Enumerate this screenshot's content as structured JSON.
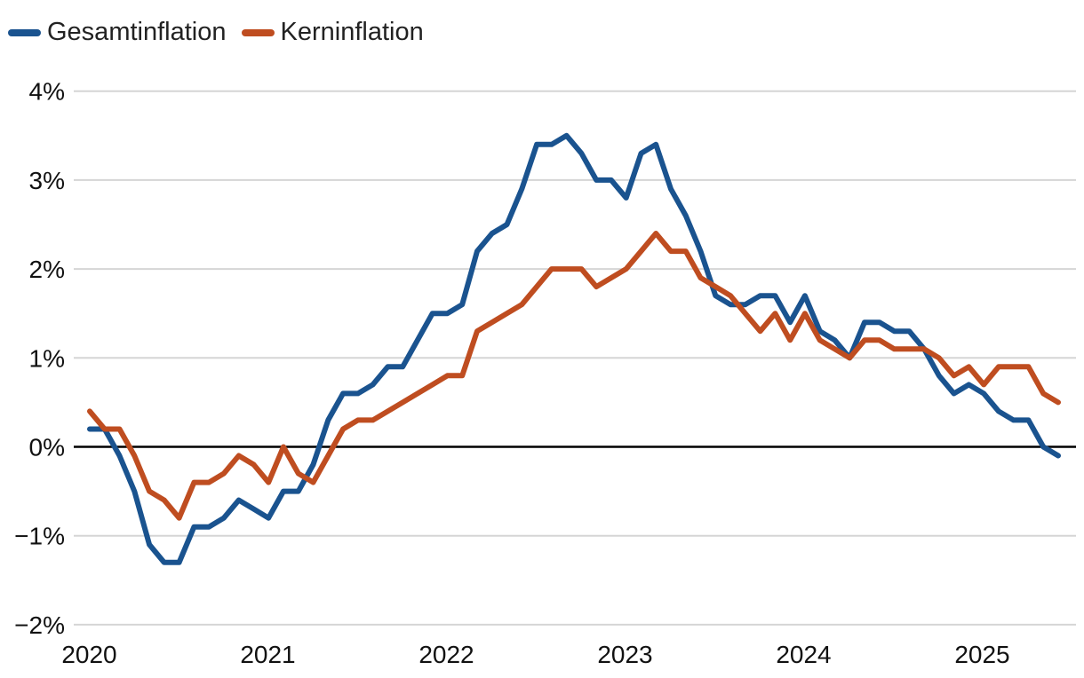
{
  "legend": {
    "items": [
      {
        "label": "Gesamtinflation",
        "color": "#1a538f"
      },
      {
        "label": "Kerninflation",
        "color": "#bf4d20"
      }
    ]
  },
  "chart_data": {
    "type": "line",
    "x": [
      "2019-12",
      "2020-01",
      "2020-02",
      "2020-03",
      "2020-04",
      "2020-05",
      "2020-06",
      "2020-07",
      "2020-08",
      "2020-09",
      "2020-10",
      "2020-11",
      "2020-12",
      "2021-01",
      "2021-02",
      "2021-03",
      "2021-04",
      "2021-05",
      "2021-06",
      "2021-07",
      "2021-08",
      "2021-09",
      "2021-10",
      "2021-11",
      "2021-12",
      "2022-01",
      "2022-02",
      "2022-03",
      "2022-04",
      "2022-05",
      "2022-06",
      "2022-07",
      "2022-08",
      "2022-09",
      "2022-10",
      "2022-11",
      "2022-12",
      "2023-01",
      "2023-02",
      "2023-03",
      "2023-04",
      "2023-05",
      "2023-06",
      "2023-07",
      "2023-08",
      "2023-09",
      "2023-10",
      "2023-11",
      "2023-12",
      "2024-01",
      "2024-02",
      "2024-03",
      "2024-04",
      "2024-05",
      "2024-06",
      "2024-07",
      "2024-08",
      "2024-09",
      "2024-10",
      "2024-11",
      "2024-12",
      "2025-01",
      "2025-02",
      "2025-03",
      "2025-04",
      "2025-05"
    ],
    "series": [
      {
        "name": "Gesamtinflation",
        "color": "#1a538f",
        "values": [
          0.2,
          0.2,
          -0.1,
          -0.5,
          -1.1,
          -1.3,
          -1.3,
          -0.9,
          -0.9,
          -0.8,
          -0.6,
          -0.7,
          -0.8,
          -0.5,
          -0.5,
          -0.2,
          0.3,
          0.6,
          0.6,
          0.7,
          0.9,
          0.9,
          1.2,
          1.5,
          1.5,
          1.6,
          2.2,
          2.4,
          2.5,
          2.9,
          3.4,
          3.4,
          3.5,
          3.3,
          3.0,
          3.0,
          2.8,
          3.3,
          3.4,
          2.9,
          2.6,
          2.2,
          1.7,
          1.6,
          1.6,
          1.7,
          1.7,
          1.4,
          1.7,
          1.3,
          1.2,
          1.0,
          1.4,
          1.4,
          1.3,
          1.3,
          1.1,
          0.8,
          0.6,
          0.7,
          0.6,
          0.4,
          0.3,
          0.3,
          0.0,
          -0.1
        ]
      },
      {
        "name": "Kerninflation",
        "color": "#bf4d20",
        "values": [
          0.4,
          0.2,
          0.2,
          -0.1,
          -0.5,
          -0.6,
          -0.8,
          -0.4,
          -0.4,
          -0.3,
          -0.1,
          -0.2,
          -0.4,
          0.0,
          -0.3,
          -0.4,
          -0.1,
          0.2,
          0.3,
          0.3,
          0.4,
          0.5,
          0.6,
          0.7,
          0.8,
          0.8,
          1.3,
          1.4,
          1.5,
          1.6,
          1.8,
          2.0,
          2.0,
          2.0,
          1.8,
          1.9,
          2.0,
          2.2,
          2.4,
          2.2,
          2.2,
          1.9,
          1.8,
          1.7,
          1.5,
          1.3,
          1.5,
          1.2,
          1.5,
          1.2,
          1.1,
          1.0,
          1.2,
          1.2,
          1.1,
          1.1,
          1.1,
          1.0,
          0.8,
          0.9,
          0.7,
          0.9,
          0.9,
          0.9,
          0.6,
          0.5
        ]
      }
    ],
    "ylim": [
      -2,
      4
    ],
    "y_ticks": [
      {
        "value": 4,
        "label": "4%"
      },
      {
        "value": 3,
        "label": "3%"
      },
      {
        "value": 2,
        "label": "2%"
      },
      {
        "value": 1,
        "label": "1%"
      },
      {
        "value": 0,
        "label": "0%"
      },
      {
        "value": -1,
        "label": "−1%"
      },
      {
        "value": -2,
        "label": "−2%"
      }
    ],
    "x_ticks": [
      "2020",
      "2021",
      "2022",
      "2023",
      "2024",
      "2025"
    ],
    "grid": "horizontal",
    "legend_position": "top-left",
    "colors": {
      "grid": "#d5d5d5",
      "zero_line": "#000000",
      "axis_text": "#111111"
    }
  }
}
